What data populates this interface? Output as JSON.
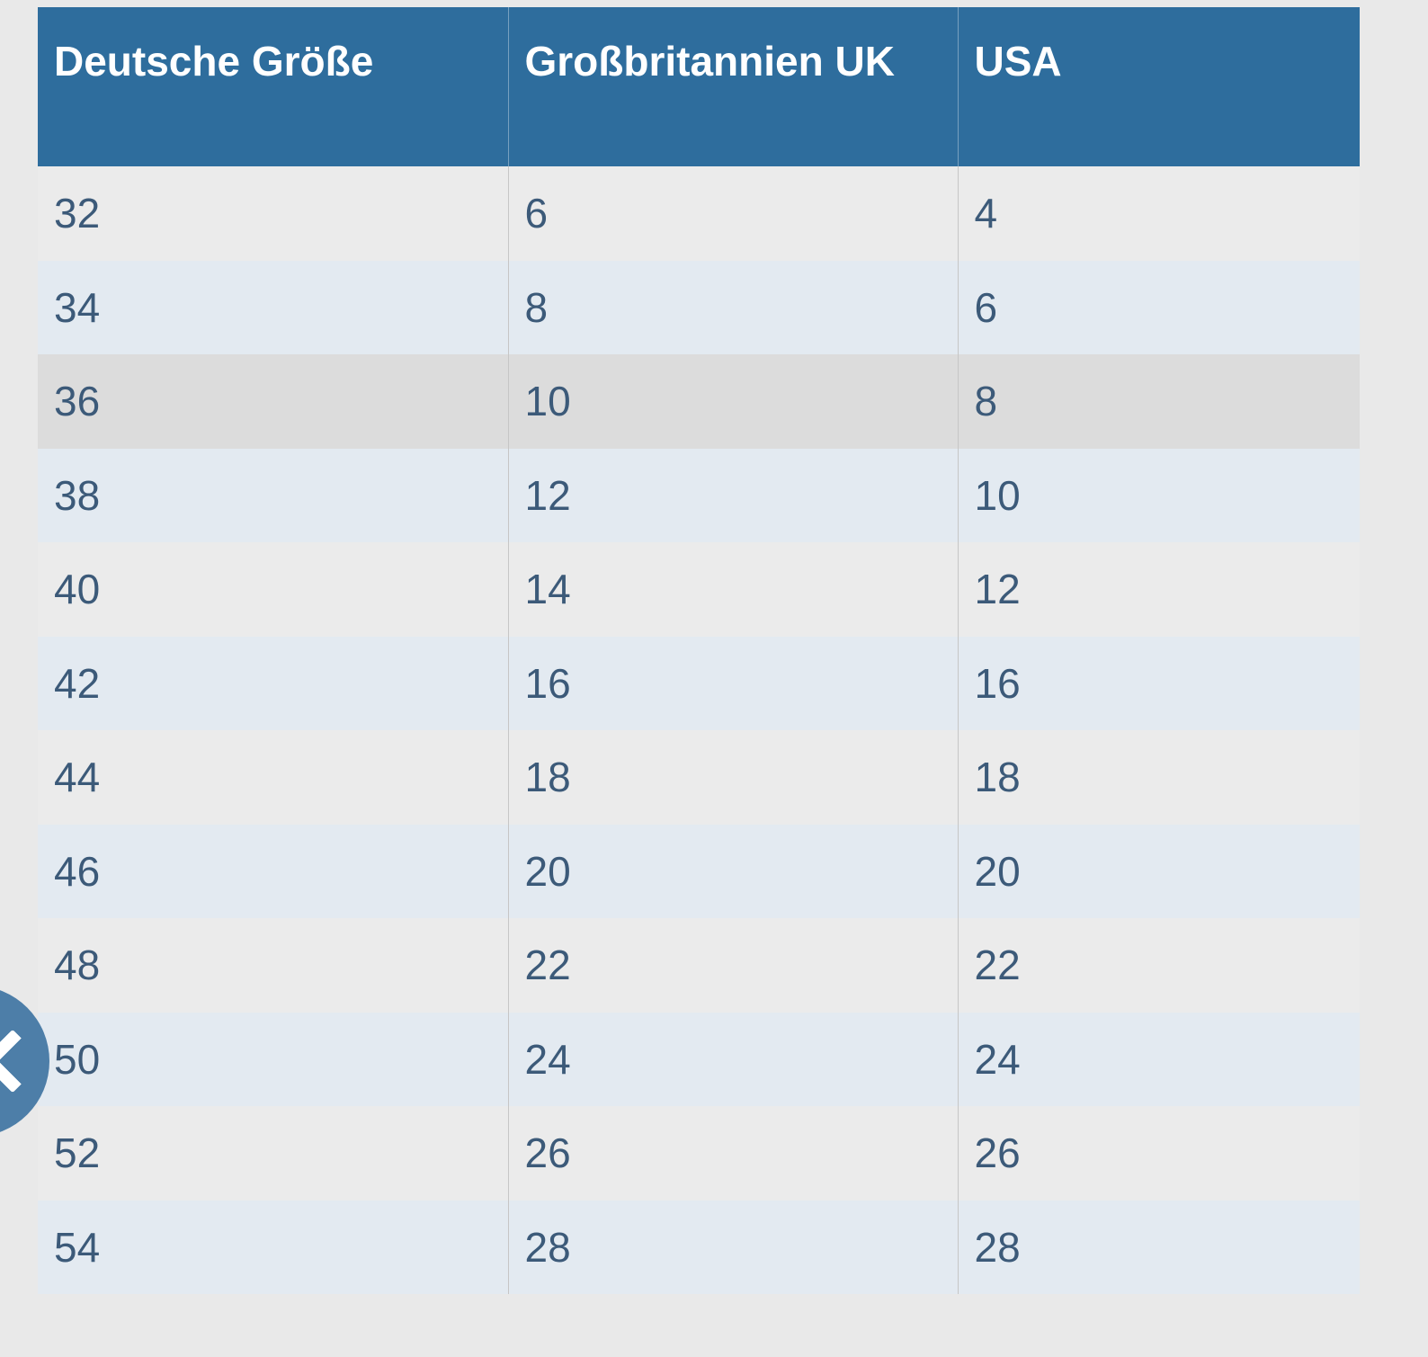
{
  "table": {
    "columns": [
      "Deutsche Größe",
      "Großbritannien UK",
      "USA"
    ],
    "rows": [
      [
        "32",
        "6",
        "4"
      ],
      [
        "34",
        "8",
        "6"
      ],
      [
        "36",
        "10",
        "8"
      ],
      [
        "38",
        "12",
        "10"
      ],
      [
        "40",
        "14",
        "12"
      ],
      [
        "42",
        "16",
        "16"
      ],
      [
        "44",
        "18",
        "18"
      ],
      [
        "46",
        "20",
        "20"
      ],
      [
        "48",
        "22",
        "22"
      ],
      [
        "50",
        "24",
        "24"
      ],
      [
        "52",
        "26",
        "26"
      ],
      [
        "54",
        "28",
        "28"
      ]
    ],
    "highlighted_row_index": 2
  },
  "nav": {
    "prev_icon": "chevron-left"
  },
  "colors": {
    "header_background": "#2e6d9d",
    "header_text": "#ffffff",
    "cell_text": "#3c5a79",
    "row_gray": "#ebebeb",
    "row_blue": "#e3eaf1",
    "row_highlight": "#dcdcdc",
    "nav_circle": "#4d7ea8"
  }
}
